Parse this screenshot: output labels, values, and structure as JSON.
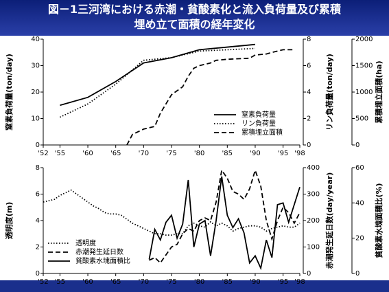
{
  "title": [
    "図－1三河湾における赤潮・貧酸素化と流入負荷量及び累積",
    "埋め立て面積の経年変化"
  ],
  "chart_data": [
    {
      "type": "line",
      "xlim": [
        1952,
        1998
      ],
      "xticks": [
        {
          "value": 1952,
          "label": "'52"
        },
        {
          "value": 1955,
          "label": "'55"
        },
        {
          "value": 1960,
          "label": "'60"
        },
        {
          "value": 1965,
          "label": "'65"
        },
        {
          "value": 1970,
          "label": "'70"
        },
        {
          "value": 1975,
          "label": "'75"
        },
        {
          "value": 1980,
          "label": "'80"
        },
        {
          "value": 1985,
          "label": "'85"
        },
        {
          "value": 1990,
          "label": "'90"
        },
        {
          "value": 1995,
          "label": "'95"
        },
        {
          "value": 1998,
          "label": "'98"
        }
      ],
      "ylabel": "窒素負荷量(ton/day)",
      "ylim": [
        0,
        40
      ],
      "yticks": [
        0,
        10,
        20,
        30,
        40
      ],
      "y2label": "リン負荷量(ton/day)",
      "y2lim": [
        0,
        8
      ],
      "y2ticks": [
        0,
        2,
        4,
        6,
        8
      ],
      "y3label": "累積埋立面積(ha)",
      "y3lim": [
        0,
        2000
      ],
      "y3ticks": [
        0,
        500,
        1000,
        1500,
        2000
      ],
      "legend": "lower right",
      "series": [
        {
          "name": "窒素負荷量",
          "color": "#000000",
          "dash": "solid",
          "axis": "y",
          "x": [
            1955,
            1960,
            1965,
            1970,
            1975,
            1980,
            1985,
            1990
          ],
          "values": [
            15,
            18,
            24,
            31,
            33,
            36,
            37,
            38
          ]
        },
        {
          "name": "リン負荷量",
          "color": "#000000",
          "dash": "dotted",
          "axis": "y2",
          "x": [
            1955,
            1960,
            1965,
            1970,
            1975,
            1980,
            1985,
            1990
          ],
          "values": [
            2.1,
            3.1,
            4.6,
            6.4,
            6.6,
            7.1,
            7.2,
            7.3
          ]
        },
        {
          "name": "累積埋立面積",
          "color": "#000000",
          "dash": "dashed",
          "axis": "y3",
          "x": [
            1967,
            1968,
            1970,
            1972,
            1973,
            1975,
            1977,
            1978,
            1979,
            1980,
            1982,
            1983,
            1985,
            1987,
            1989,
            1990,
            1992,
            1993,
            1995,
            1997
          ],
          "values": [
            0,
            200,
            300,
            350,
            600,
            950,
            1100,
            1300,
            1450,
            1500,
            1550,
            1600,
            1620,
            1630,
            1640,
            1700,
            1720,
            1750,
            1800,
            1800
          ]
        }
      ]
    },
    {
      "type": "line",
      "xlim": [
        1952,
        1998
      ],
      "xticks": [
        {
          "value": 1952,
          "label": "'52"
        },
        {
          "value": 1955,
          "label": "'55"
        },
        {
          "value": 1960,
          "label": "'60"
        },
        {
          "value": 1965,
          "label": "'65"
        },
        {
          "value": 1970,
          "label": "'70"
        },
        {
          "value": 1975,
          "label": "'75"
        },
        {
          "value": 1980,
          "label": "'80"
        },
        {
          "value": 1985,
          "label": "'85"
        },
        {
          "value": 1990,
          "label": "'90"
        },
        {
          "value": 1995,
          "label": "'95"
        },
        {
          "value": 1998,
          "label": "'98"
        }
      ],
      "ylabel": "透明度(m)",
      "ylim": [
        0,
        8
      ],
      "yticks": [
        0,
        2,
        4,
        6,
        8
      ],
      "y2label": "赤潮発生延日数(day/year)",
      "y2lim": [
        0,
        400
      ],
      "y2ticks": [
        0,
        100,
        200,
        300,
        400
      ],
      "y3label": "貧酸素水塊面積比(%)",
      "y3lim": [
        0,
        60
      ],
      "y3ticks": [
        0,
        20,
        40,
        60
      ],
      "legend": "lower left",
      "series": [
        {
          "name": "透明度",
          "color": "#000000",
          "dash": "dotted",
          "axis": "y",
          "x": [
            1952,
            1953,
            1954,
            1955,
            1956,
            1957,
            1958,
            1959,
            1960,
            1961,
            1962,
            1963,
            1964,
            1965,
            1966,
            1967,
            1968,
            1969,
            1970,
            1971,
            1972,
            1973,
            1974,
            1975,
            1976,
            1977,
            1978,
            1979,
            1980,
            1981,
            1982,
            1983,
            1984,
            1985,
            1986,
            1987,
            1988,
            1989,
            1990,
            1991,
            1992,
            1993,
            1994,
            1995,
            1996,
            1997,
            1998
          ],
          "values": [
            5.4,
            5.5,
            5.6,
            5.9,
            6.1,
            6.3,
            6.0,
            5.7,
            5.4,
            5.1,
            4.9,
            4.6,
            4.5,
            4.5,
            4.4,
            4.1,
            3.8,
            3.6,
            3.4,
            3.2,
            3.0,
            3.0,
            2.9,
            2.9,
            3.0,
            3.0,
            3.6,
            3.8,
            3.6,
            3.5,
            3.9,
            3.6,
            3.8,
            3.6,
            3.2,
            3.4,
            3.5,
            3.6,
            3.6,
            3.5,
            3.2,
            3.4,
            3.5,
            3.6,
            3.5,
            3.5,
            3.8
          ]
        },
        {
          "name": "赤潮発生延日数",
          "color": "#000000",
          "dash": "dashed",
          "axis": "y2",
          "x": [
            1971,
            1972,
            1973,
            1974,
            1975,
            1976,
            1977,
            1978,
            1979,
            1980,
            1981,
            1982,
            1983,
            1984,
            1985,
            1986,
            1987,
            1988,
            1989,
            1990,
            1991,
            1992,
            1993,
            1994,
            1995,
            1996,
            1997,
            1998
          ],
          "values": [
            50,
            60,
            40,
            70,
            100,
            110,
            150,
            170,
            160,
            200,
            210,
            200,
            270,
            390,
            360,
            310,
            300,
            280,
            320,
            390,
            330,
            200,
            130,
            200,
            250,
            230,
            190,
            230
          ]
        },
        {
          "name": "貧酸素水塊面積比",
          "color": "#000000",
          "dash": "solid",
          "axis": "y3",
          "x": [
            1971,
            1972,
            1973,
            1974,
            1975,
            1976,
            1977,
            1978,
            1979,
            1980,
            1981,
            1982,
            1983,
            1984,
            1985,
            1986,
            1987,
            1988,
            1989,
            1990,
            1991,
            1992,
            1993,
            1994,
            1995,
            1996,
            1997,
            1998
          ],
          "values": [
            8,
            25,
            19,
            29,
            33,
            20,
            28,
            53,
            15,
            28,
            30,
            10,
            30,
            55,
            33,
            26,
            31,
            23,
            6,
            10,
            3,
            19,
            9,
            39,
            40,
            29,
            39,
            49
          ]
        }
      ]
    }
  ]
}
